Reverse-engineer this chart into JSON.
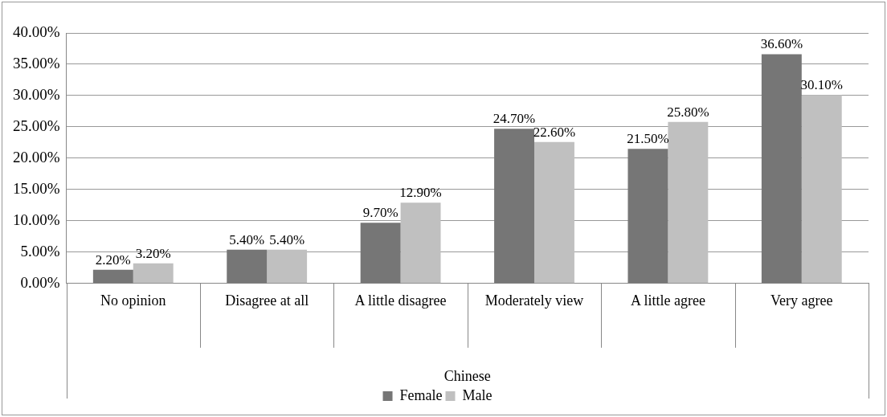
{
  "chart_data": {
    "type": "bar",
    "xlabel": "Chinese",
    "categories": [
      "No opinion",
      "Disagree at all",
      "A little disagree",
      "Moderately view",
      "A little agree",
      "Very agree"
    ],
    "series": [
      {
        "name": "Female",
        "color": "#767676",
        "values": [
          2.2,
          5.4,
          9.7,
          24.7,
          21.5,
          36.6
        ],
        "value_labels": [
          "2.20%",
          "5.40%",
          "9.70%",
          "24.70%",
          "21.50%",
          "36.60%"
        ]
      },
      {
        "name": "Male",
        "color": "#c0c0c0",
        "values": [
          3.2,
          5.4,
          12.9,
          22.6,
          25.8,
          30.1
        ],
        "value_labels": [
          "3.20%",
          "5.40%",
          "12.90%",
          "22.60%",
          "25.80%",
          "30.10%"
        ]
      }
    ],
    "ylim": [
      0,
      40
    ],
    "yticks": [
      {
        "value": 0,
        "label": "0.00%"
      },
      {
        "value": 5,
        "label": "5.00%"
      },
      {
        "value": 10,
        "label": "10.00%"
      },
      {
        "value": 15,
        "label": "15.00%"
      },
      {
        "value": 20,
        "label": "20.00%"
      },
      {
        "value": 25,
        "label": "25.00%"
      },
      {
        "value": 30,
        "label": "30.00%"
      },
      {
        "value": 35,
        "label": "35.00%"
      },
      {
        "value": 40,
        "label": "40.00%"
      }
    ],
    "grid": "y",
    "legend": "bottom"
  }
}
